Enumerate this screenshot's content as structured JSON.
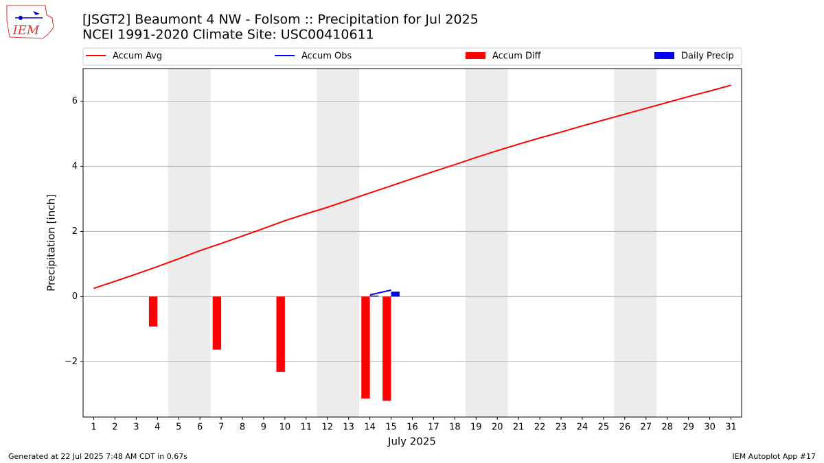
{
  "chart_data": {
    "type": "bar",
    "title": "[JSGT2] Beaumont 4 NW - Folsom :: Precipitation for Jul 2025",
    "subtitle": "NCEI 1991-2020 Climate Site: USC00410611",
    "xlabel": "July 2025",
    "ylabel": "Precipitation [inch]",
    "x": [
      1,
      2,
      3,
      4,
      5,
      6,
      7,
      8,
      9,
      10,
      11,
      12,
      13,
      14,
      15,
      16,
      17,
      18,
      19,
      20,
      21,
      22,
      23,
      24,
      25,
      26,
      27,
      28,
      29,
      30,
      31
    ],
    "xlim": [
      0.5,
      31.5
    ],
    "xticks": [
      1,
      2,
      3,
      4,
      5,
      6,
      7,
      8,
      9,
      10,
      11,
      12,
      13,
      14,
      15,
      16,
      17,
      18,
      19,
      20,
      21,
      22,
      23,
      24,
      25,
      26,
      27,
      28,
      29,
      30,
      31
    ],
    "ylim": [
      -3.7,
      7.0
    ],
    "yticks": [
      {
        "value": -2,
        "label": "−2"
      },
      0,
      2,
      4,
      6
    ],
    "grid": true,
    "shaded_spans": [
      [
        4.5,
        6.5
      ],
      [
        11.5,
        13.5
      ],
      [
        18.5,
        20.5
      ],
      [
        25.5,
        27.5
      ]
    ],
    "shade_color": "#ececec",
    "series": [
      {
        "name": "Accum Avg",
        "kind": "line",
        "color": "#ff0000",
        "values": [
          0.25,
          0.47,
          0.69,
          0.92,
          1.16,
          1.41,
          1.63,
          1.86,
          2.09,
          2.33,
          2.54,
          2.74,
          2.96,
          3.18,
          3.4,
          3.62,
          3.84,
          4.05,
          4.27,
          4.48,
          4.68,
          4.87,
          5.05,
          5.24,
          5.42,
          5.6,
          5.78,
          5.96,
          6.14,
          6.31,
          6.49
        ]
      },
      {
        "name": "Accum Obs",
        "kind": "line",
        "color": "#0000ff",
        "values": [
          null,
          null,
          null,
          null,
          null,
          null,
          null,
          null,
          null,
          null,
          null,
          null,
          null,
          0.05,
          0.2,
          null,
          null,
          null,
          null,
          null,
          null,
          null,
          null,
          null,
          null,
          null,
          null,
          null,
          null,
          null,
          null
        ]
      },
      {
        "name": "Accum Diff",
        "kind": "bar",
        "color": "#ff0000",
        "values": [
          null,
          null,
          null,
          -0.92,
          null,
          null,
          -1.63,
          null,
          null,
          -2.31,
          null,
          null,
          null,
          -3.13,
          -3.2,
          null,
          null,
          null,
          null,
          null,
          null,
          null,
          null,
          null,
          null,
          null,
          null,
          null,
          null,
          null,
          null
        ]
      },
      {
        "name": "Daily Precip",
        "kind": "bar",
        "color": "#0000ff",
        "values": [
          null,
          null,
          null,
          null,
          null,
          null,
          null,
          null,
          null,
          null,
          null,
          null,
          null,
          0.03,
          0.15,
          null,
          null,
          null,
          null,
          null,
          null,
          null,
          null,
          null,
          null,
          null,
          null,
          null,
          null,
          null,
          null
        ]
      }
    ]
  },
  "logo_text": "IEM",
  "footer_left": "Generated at 22 Jul 2025 7:48 AM CDT in 0.67s",
  "footer_right": "IEM Autoplot App #17"
}
